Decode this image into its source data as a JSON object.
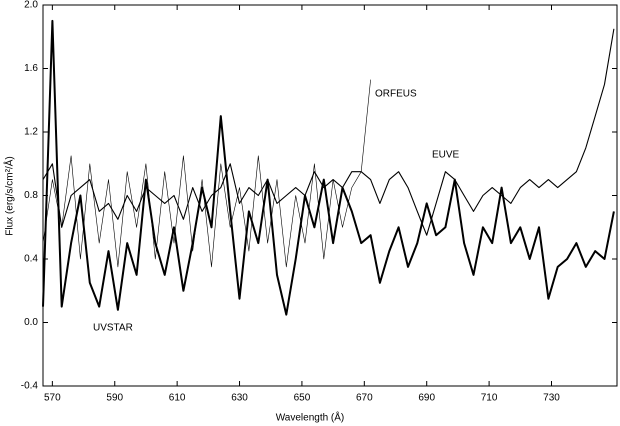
{
  "chart_data": {
    "type": "line",
    "x_label": "Wavelength (Å)",
    "y_label": "Flux (erg/s/cm²/Å)",
    "x": [
      567,
      570,
      573,
      576,
      579,
      582,
      585,
      588,
      591,
      594,
      597,
      600,
      603,
      606,
      609,
      612,
      615,
      618,
      621,
      624,
      627,
      630,
      633,
      636,
      639,
      642,
      645,
      648,
      651,
      654,
      657,
      660,
      663,
      666,
      669,
      672,
      675,
      678,
      681,
      684,
      687,
      690,
      693,
      696,
      699,
      702,
      705,
      708,
      711,
      714,
      717,
      720,
      723,
      726,
      729,
      732,
      735,
      738,
      741,
      744,
      747,
      750
    ],
    "series": [
      {
        "name": "UVSTAR",
        "color": "#000000",
        "values": [
          0.1,
          1.9,
          0.1,
          0.5,
          0.8,
          0.25,
          0.1,
          0.45,
          0.08,
          0.5,
          0.3,
          0.9,
          0.5,
          0.3,
          0.6,
          0.2,
          0.5,
          0.85,
          0.6,
          1.3,
          0.7,
          0.15,
          0.7,
          0.5,
          0.9,
          0.3,
          0.05,
          0.4,
          0.8,
          0.6,
          0.9,
          0.5,
          0.85,
          0.7,
          0.5,
          0.55,
          0.25,
          0.45,
          0.6,
          0.35,
          0.5,
          0.75,
          0.55,
          0.6,
          0.9,
          0.5,
          0.3,
          0.6,
          0.5,
          0.85,
          0.5,
          0.6,
          0.4,
          0.6,
          0.15,
          0.35,
          0.4,
          0.5,
          0.35,
          0.45,
          0.4,
          0.7
        ]
      },
      {
        "name": "EUVE",
        "color": "#000000",
        "values": [
          0.9,
          1.0,
          0.6,
          0.8,
          0.85,
          0.9,
          0.7,
          0.75,
          0.65,
          0.8,
          0.7,
          0.85,
          0.8,
          0.75,
          0.8,
          0.65,
          0.85,
          0.7,
          0.8,
          0.85,
          1.0,
          0.75,
          0.85,
          0.8,
          0.9,
          0.75,
          0.8,
          0.85,
          0.8,
          0.95,
          0.85,
          0.9,
          0.85,
          0.95,
          0.95,
          0.9,
          0.75,
          0.9,
          0.95,
          0.85,
          0.7,
          0.55,
          0.75,
          0.95,
          0.9,
          0.8,
          0.7,
          0.8,
          0.85,
          0.8,
          0.75,
          0.85,
          0.9,
          0.85,
          0.9,
          0.85,
          0.9,
          0.95,
          1.1,
          1.3,
          1.5,
          1.85
        ]
      },
      {
        "name": "ORFEUS",
        "color": "#000000",
        "values": [
          0.5,
          0.9,
          0.6,
          1.05,
          0.4,
          1.0,
          0.5,
          0.9,
          0.35,
          0.95,
          0.6,
          1.0,
          0.4,
          0.95,
          0.5,
          1.05,
          0.45,
          0.9,
          0.35,
          1.0,
          0.6,
          0.85,
          0.45,
          1.05,
          0.5,
          0.9,
          0.35,
          0.8,
          0.5,
          1.0,
          0.4,
          0.9,
          0.6,
          0.85,
          0.95,
          1.53,
          null,
          null,
          null,
          null,
          null,
          null,
          null,
          null,
          null,
          null,
          null,
          null,
          null,
          null,
          null,
          null,
          null,
          null,
          null,
          null,
          null,
          null,
          null,
          null,
          null,
          null
        ]
      }
    ],
    "xlim": [
      567,
      751
    ],
    "xticks": [
      570,
      590,
      610,
      630,
      650,
      670,
      690,
      710,
      730
    ],
    "ylim": [
      -0.4,
      2.0
    ],
    "yticks": [
      -0.4,
      {
        "value": 0,
        "label": "0.0"
      },
      0.4,
      0.8,
      1.2,
      1.6,
      {
        "value": 2,
        "label": "2.0"
      }
    ]
  }
}
